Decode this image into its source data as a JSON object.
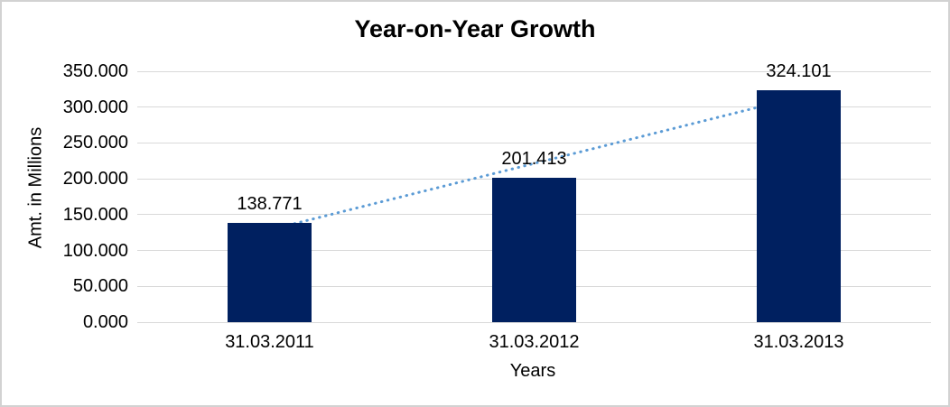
{
  "chart_data": {
    "type": "bar",
    "title": "Year-on-Year Growth",
    "xlabel": "Years",
    "ylabel": "Amt. in Millions",
    "categories": [
      "31.03.2011",
      "31.03.2012",
      "31.03.2013"
    ],
    "values": [
      138.771,
      201.413,
      324.101
    ],
    "data_labels": [
      "138.771",
      "201.413",
      "324.101"
    ],
    "ylim": [
      0,
      350
    ],
    "ytick_step": 50,
    "ytick_labels": [
      "0.000",
      "50.000",
      "100.000",
      "150.000",
      "200.000",
      "250.000",
      "300.000",
      "350.000"
    ],
    "grid": true,
    "legend": "none",
    "trendline": {
      "type": "linear",
      "style": "dotted",
      "color": "#5B9BD5",
      "endpoint_values": [
        128.763,
        314.093
      ]
    },
    "colors": {
      "bar": "#002060",
      "gridline": "#D9D9D9",
      "text": "#000000",
      "background": "#FFFFFF",
      "frame": "#D2D2D2"
    }
  }
}
